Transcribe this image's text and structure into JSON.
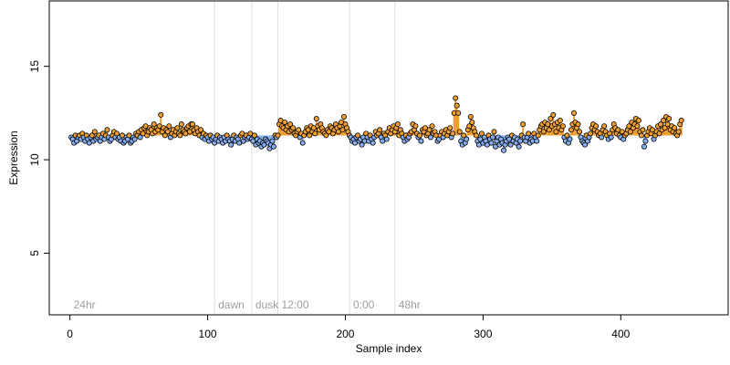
{
  "chart_data": {
    "type": "scatter",
    "title": "",
    "xlabel": "Sample index",
    "ylabel": "Expression",
    "xlim": [
      -15,
      478
    ],
    "ylim": [
      1.7,
      18.5
    ],
    "x_ticks": [
      0,
      100,
      200,
      300,
      400
    ],
    "y_ticks": [
      5,
      10,
      15
    ],
    "baseline": 11.3,
    "colors": {
      "above": "#f0a030",
      "below": "#87aef0",
      "point_edge": "#000000",
      "divider": "#e0e0e0",
      "section_text": "#9e9e9e"
    },
    "sections": [
      {
        "label": "24hr",
        "x": 0
      },
      {
        "label": "dawn",
        "x": 105
      },
      {
        "label": "dusk",
        "x": 132
      },
      {
        "label": "12:00",
        "x": 151
      },
      {
        "label": "0:00",
        "x": 203
      },
      {
        "label": "48hr",
        "x": 236
      }
    ],
    "series": [
      {
        "x_start": 1,
        "values": [
          11.2,
          11.1,
          10.9,
          11.3,
          11.0,
          11.2,
          11.3,
          11.1,
          11.4,
          11.2,
          11.0,
          11.3,
          11.1,
          10.9,
          11.2,
          11.3,
          11.0,
          11.5,
          11.1,
          11.2,
          11.3,
          11.0,
          11.2,
          11.4,
          11.1,
          11.3,
          11.6,
          11.2,
          11.0,
          11.1,
          11.3,
          11.5,
          11.2,
          11.4,
          11.1,
          11.2,
          11.0,
          11.3,
          10.9,
          11.0,
          11.2,
          11.1,
          11.3,
          10.9,
          11.0,
          11.2,
          11.1,
          11.4,
          11.3,
          11.5,
          11.2,
          11.6,
          11.4,
          11.7,
          11.8,
          11.3,
          11.5,
          11.7,
          11.6,
          11.4,
          11.9,
          11.5,
          11.7,
          11.6,
          11.8,
          12.4,
          11.5,
          11.7,
          11.3,
          11.6,
          11.5,
          11.8,
          11.2,
          11.4,
          11.6,
          11.3,
          11.5,
          11.7,
          11.4,
          11.3,
          11.9,
          11.6,
          11.5,
          11.4,
          11.7,
          11.8,
          11.5,
          11.9,
          11.9,
          11.6,
          11.4,
          11.7,
          11.5,
          11.3,
          11.6,
          11.2,
          11.4,
          11.1,
          11.3,
          11.2,
          11.0,
          11.3,
          11.1,
          11.2,
          10.9,
          11.1,
          11.3,
          11.0,
          11.2,
          11.1,
          10.9,
          11.2,
          11.0,
          11.3,
          11.1,
          11.0,
          10.8,
          11.1,
          11.3,
          11.0,
          11.2,
          11.1,
          10.9,
          11.3,
          11.4,
          11.0,
          11.2,
          11.3,
          11.1,
          11.2,
          11.4,
          11.1,
          11.0,
          11.3,
          10.8,
          11.1,
          10.9,
          11.0,
          10.7,
          10.9,
          10.8,
          11.1,
          11.0,
          10.9,
          10.6,
          10.8,
          11.0,
          10.7,
          11.3,
          11.2,
          11.3,
          11.9,
          12.1,
          11.8,
          11.7,
          12.0,
          11.6,
          11.8,
          11.5,
          11.9,
          11.6,
          11.7,
          11.4,
          11.3,
          11.5,
          11.6,
          11.2,
          11.4,
          10.9,
          11.3,
          11.5,
          11.7,
          11.6,
          11.3,
          11.8,
          11.5,
          11.7,
          11.4,
          12.2,
          11.8,
          11.6,
          11.9,
          11.7,
          11.5,
          11.4,
          11.3,
          11.6,
          11.5,
          11.8,
          11.7,
          11.4,
          11.6,
          11.9,
          11.7,
          11.5,
          11.8,
          12.0,
          11.6,
          12.3,
          11.9,
          11.7,
          11.5,
          11.3,
          11.2,
          11.0,
          11.1,
          10.9,
          11.2,
          11.3,
          11.0,
          11.1,
          10.8,
          11.2,
          11.0,
          11.4,
          11.2,
          11.0,
          11.3,
          11.1,
          10.9,
          11.2,
          11.5,
          11.3,
          11.4,
          11.6,
          11.2,
          11.0,
          11.4,
          11.3,
          11.1,
          11.5,
          11.7,
          11.4,
          11.6,
          11.8,
          11.5,
          11.7,
          11.9,
          11.3,
          11.6,
          11.4,
          11.2,
          11.0,
          11.3,
          11.1,
          11.2,
          11.4,
          11.5,
          11.9,
          11.6,
          11.8,
          11.4,
          11.2,
          11.3,
          11.0,
          11.6,
          11.5,
          11.7,
          11.3,
          11.4,
          11.6,
          11.2,
          11.8,
          11.4,
          11.5,
          11.3,
          11.0,
          11.1,
          11.3,
          11.5,
          11.2,
          11.4,
          11.6,
          11.3,
          11.5,
          11.7,
          11.2,
          11.4,
          12.5,
          13.3,
          12.9,
          12.5,
          11.5,
          11.0,
          10.8,
          11.3,
          10.9,
          11.1,
          11.6,
          11.8,
          12.3,
          12.0,
          11.7,
          11.5,
          11.3,
          11.0,
          10.8,
          11.1,
          11.4,
          10.9,
          11.2,
          11.0,
          10.8,
          11.3,
          11.1,
          10.9,
          11.2,
          11.5,
          10.7,
          11.0,
          11.2,
          10.8,
          11.1,
          10.9,
          10.5,
          10.8,
          11.0,
          11.2,
          11.1,
          10.8,
          11.3,
          11.0,
          11.2,
          10.9,
          11.1,
          10.7,
          11.0,
          11.3,
          11.9,
          11.2,
          11.0,
          11.2,
          11.4,
          10.9,
          11.1,
          11.0,
          11.4,
          11.2,
          11.0,
          11.3,
          11.6,
          11.8,
          11.9,
          11.5,
          12.0,
          11.7,
          11.9,
          11.6,
          12.2,
          11.8,
          12.4,
          11.9,
          11.5,
          12.0,
          11.7,
          12.1,
          11.6,
          11.8,
          11.2,
          11.0,
          11.3,
          10.9,
          11.1,
          11.6,
          11.9,
          12.5,
          12.0,
          11.7,
          11.9,
          11.5,
          11.2,
          11.0,
          10.9,
          10.8,
          11.3,
          11.0,
          11.2,
          11.4,
          11.7,
          11.9,
          11.6,
          11.8,
          11.5,
          11.3,
          11.4,
          11.2,
          11.6,
          11.8,
          11.5,
          11.3,
          11.1,
          11.4,
          11.2,
          11.6,
          11.9,
          11.7,
          11.4,
          11.6,
          11.3,
          11.2,
          11.5,
          11.1,
          11.3,
          11.4,
          11.6,
          11.8,
          11.5,
          12.0,
          11.7,
          11.9,
          12.2,
          11.8,
          12.1,
          11.5,
          11.3,
          11.6,
          10.7,
          11.0,
          11.3,
          11.5,
          11.7,
          11.4,
          11.6,
          11.1,
          11.3,
          11.5,
          11.8,
          11.4,
          11.9,
          11.6,
          12.1,
          11.7,
          12.3,
          11.9,
          12.2,
          11.6,
          11.8,
          11.5,
          11.7,
          11.4,
          11.3,
          11.5,
          11.9,
          12.1
        ]
      }
    ]
  }
}
